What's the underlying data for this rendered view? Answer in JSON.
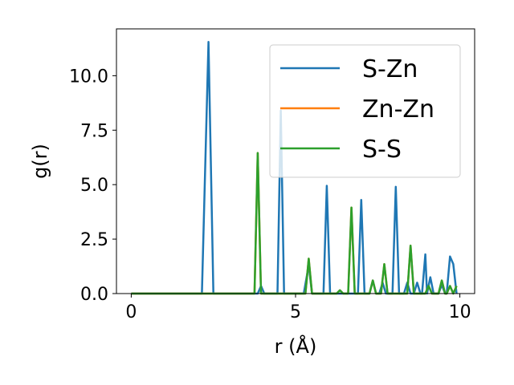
{
  "chart_data": {
    "type": "line",
    "xlabel": "r (Å)",
    "ylabel": "g(r)",
    "xlim": [
      -0.45,
      10.45
    ],
    "ylim": [
      0,
      12.15
    ],
    "xticks": [
      0,
      5,
      10
    ],
    "yticks": [
      0.0,
      2.5,
      5.0,
      7.5,
      10.0
    ],
    "xtick_labels": [
      "0",
      "5",
      "10"
    ],
    "ytick_labels": [
      "0.0",
      "2.5",
      "5.0",
      "7.5",
      "10.0"
    ],
    "grid": false,
    "legend_position": "top-right",
    "series": [
      {
        "name": "S-Zn",
        "color": "#1f77b4",
        "points": [
          [
            0,
            0
          ],
          [
            2.15,
            0
          ],
          [
            2.35,
            11.55
          ],
          [
            2.5,
            0
          ],
          [
            3.85,
            0
          ],
          [
            3.95,
            0.35
          ],
          [
            4.05,
            0
          ],
          [
            4.45,
            0
          ],
          [
            4.55,
            8.4
          ],
          [
            4.65,
            0
          ],
          [
            5.25,
            0
          ],
          [
            5.4,
            1.3
          ],
          [
            5.5,
            0
          ],
          [
            5.85,
            0
          ],
          [
            5.95,
            4.95
          ],
          [
            6.05,
            0
          ],
          [
            6.9,
            0
          ],
          [
            7.0,
            4.3
          ],
          [
            7.1,
            0
          ],
          [
            7.25,
            0
          ],
          [
            7.35,
            0.6
          ],
          [
            7.45,
            0
          ],
          [
            7.55,
            0
          ],
          [
            7.65,
            0.5
          ],
          [
            7.75,
            0
          ],
          [
            7.95,
            0
          ],
          [
            8.05,
            4.9
          ],
          [
            8.15,
            0
          ],
          [
            8.3,
            0
          ],
          [
            8.4,
            0.5
          ],
          [
            8.5,
            0
          ],
          [
            8.6,
            0
          ],
          [
            8.7,
            0.5
          ],
          [
            8.8,
            0
          ],
          [
            8.85,
            0
          ],
          [
            8.95,
            1.8
          ],
          [
            9.0,
            0
          ],
          [
            9.1,
            0.75
          ],
          [
            9.2,
            0
          ],
          [
            9.35,
            0
          ],
          [
            9.45,
            0.4
          ],
          [
            9.55,
            0
          ],
          [
            9.6,
            0
          ],
          [
            9.7,
            1.7
          ],
          [
            9.8,
            1.35
          ],
          [
            9.9,
            0
          ]
        ]
      },
      {
        "name": "Zn-Zn",
        "color": "#ff7f0e",
        "points": [
          [
            0,
            0
          ],
          [
            3.75,
            0
          ],
          [
            3.85,
            6.45
          ],
          [
            3.95,
            0
          ],
          [
            5.3,
            0
          ],
          [
            5.4,
            1.6
          ],
          [
            5.5,
            0
          ],
          [
            6.25,
            0
          ],
          [
            6.35,
            0.15
          ],
          [
            6.45,
            0
          ],
          [
            6.6,
            0
          ],
          [
            6.7,
            3.95
          ],
          [
            6.8,
            0
          ],
          [
            7.25,
            0
          ],
          [
            7.35,
            0.6
          ],
          [
            7.45,
            0
          ],
          [
            7.6,
            0
          ],
          [
            7.7,
            1.35
          ],
          [
            7.8,
            0
          ],
          [
            8.4,
            0
          ],
          [
            8.5,
            2.2
          ],
          [
            8.6,
            0
          ],
          [
            8.95,
            0
          ],
          [
            9.05,
            0.35
          ],
          [
            9.15,
            0
          ],
          [
            9.35,
            0
          ],
          [
            9.45,
            0.6
          ],
          [
            9.55,
            0
          ],
          [
            9.6,
            0
          ],
          [
            9.7,
            0.35
          ],
          [
            9.8,
            0
          ],
          [
            9.9,
            0.35
          ]
        ]
      },
      {
        "name": "S-S",
        "color": "#2ca02c",
        "points": [
          [
            0,
            0
          ],
          [
            3.75,
            0
          ],
          [
            3.85,
            6.45
          ],
          [
            3.95,
            0
          ],
          [
            5.3,
            0
          ],
          [
            5.4,
            1.6
          ],
          [
            5.5,
            0
          ],
          [
            6.25,
            0
          ],
          [
            6.35,
            0.15
          ],
          [
            6.45,
            0
          ],
          [
            6.6,
            0
          ],
          [
            6.7,
            3.95
          ],
          [
            6.8,
            0
          ],
          [
            7.25,
            0
          ],
          [
            7.35,
            0.6
          ],
          [
            7.45,
            0
          ],
          [
            7.6,
            0
          ],
          [
            7.7,
            1.35
          ],
          [
            7.8,
            0
          ],
          [
            8.4,
            0
          ],
          [
            8.5,
            2.2
          ],
          [
            8.6,
            0
          ],
          [
            8.95,
            0
          ],
          [
            9.05,
            0.35
          ],
          [
            9.15,
            0
          ],
          [
            9.35,
            0
          ],
          [
            9.45,
            0.6
          ],
          [
            9.55,
            0
          ],
          [
            9.6,
            0
          ],
          [
            9.7,
            0.35
          ],
          [
            9.8,
            0
          ],
          [
            9.9,
            0.35
          ]
        ]
      }
    ]
  }
}
